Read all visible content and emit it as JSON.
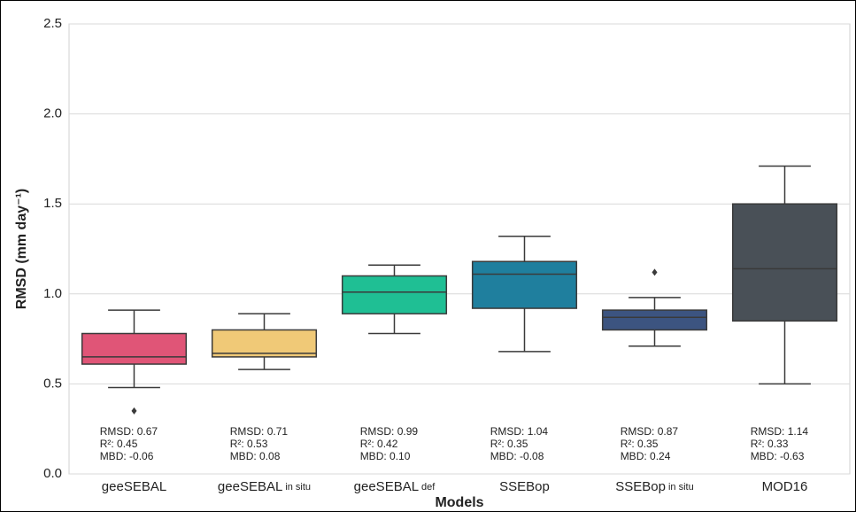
{
  "chart_data": {
    "type": "box",
    "y_label": "RMSD (mm day⁻¹)",
    "x_label": "Models",
    "categories": [
      [
        "geeSEBAL"
      ],
      [
        "geeSEBAL",
        "in situ"
      ],
      [
        "geeSEBAL",
        "def"
      ],
      [
        "SSEBop"
      ],
      [
        "SSEBop",
        "in situ"
      ],
      [
        "MOD16"
      ]
    ],
    "colors": [
      "#e05577",
      "#f0c977",
      "#1fbf94",
      "#1f7f9e",
      "#3c5480",
      "#495057"
    ],
    "boxes": [
      {
        "whislo": 0.48,
        "q1": 0.61,
        "med": 0.65,
        "q3": 0.78,
        "whishi": 0.91,
        "fliers": [
          0.35
        ]
      },
      {
        "whislo": 0.58,
        "q1": 0.65,
        "med": 0.67,
        "q3": 0.8,
        "whishi": 0.89,
        "fliers": []
      },
      {
        "whislo": 0.78,
        "q1": 0.89,
        "med": 1.01,
        "q3": 1.1,
        "whishi": 1.16,
        "fliers": []
      },
      {
        "whislo": 0.68,
        "q1": 0.92,
        "med": 1.11,
        "q3": 1.18,
        "whishi": 1.32,
        "fliers": []
      },
      {
        "whislo": 0.71,
        "q1": 0.8,
        "med": 0.87,
        "q3": 0.91,
        "whishi": 0.98,
        "fliers": [
          1.12
        ]
      },
      {
        "whislo": 0.5,
        "q1": 0.85,
        "med": 1.14,
        "q3": 1.5,
        "whishi": 1.71,
        "fliers": []
      }
    ],
    "annotations": [
      [
        "RMSD: 0.67",
        "R²: 0.45",
        "MBD: -0.06"
      ],
      [
        "RMSD: 0.71",
        "R²: 0.53",
        "MBD: 0.08"
      ],
      [
        "RMSD: 0.99",
        "R²: 0.42",
        "MBD: 0.10"
      ],
      [
        "RMSD: 1.04",
        "R²: 0.35",
        "MBD: -0.08"
      ],
      [
        "RMSD: 0.87",
        "R²: 0.35",
        "MBD: 0.24"
      ],
      [
        "RMSD: 1.14",
        "R²: 0.33",
        "MBD: -0.63"
      ]
    ],
    "ylim": [
      0,
      2.5
    ],
    "yticks": [
      {
        "value": 0,
        "label": "0.0"
      },
      0.5,
      {
        "value": 1,
        "label": "1.0"
      },
      1.5,
      {
        "value": 2,
        "label": "2.0"
      },
      2.5
    ],
    "grid": true
  }
}
